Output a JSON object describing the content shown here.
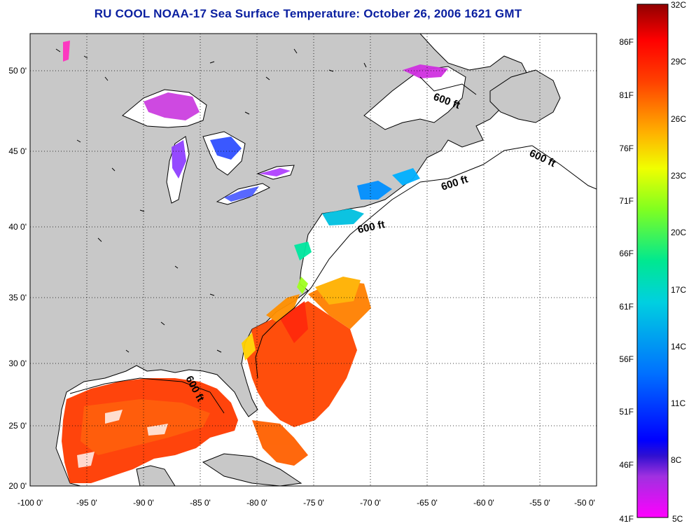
{
  "title": "RU COOL  NOAA-17  Sea Surface Temperature:  October 26, 2006 1621 GMT",
  "map": {
    "lon_ticks": [
      "-100 0'",
      "-95 0'",
      "-90 0'",
      "-85 0'",
      "-80 0'",
      "-75 0'",
      "-70 0'",
      "-65 0'",
      "-60 0'",
      "-55 0'",
      "-50 0'"
    ],
    "lat_ticks": [
      "50 0'",
      "45 0'",
      "40 0'",
      "35 0'",
      "30 0'",
      "25 0'",
      "20 0'"
    ],
    "contour_label": "600 ft",
    "land_color": "#c8c8c8",
    "ocean_color": "#ffffff",
    "grid": "dotted"
  },
  "colorbar": {
    "fahrenheit": [
      "86F",
      "81F",
      "76F",
      "71F",
      "66F",
      "61F",
      "56F",
      "51F",
      "46F",
      "41F"
    ],
    "celsius": [
      "32C",
      "29C",
      "26C",
      "23C",
      "20C",
      "17C",
      "14C",
      "11C",
      "8C",
      "5C"
    ]
  }
}
